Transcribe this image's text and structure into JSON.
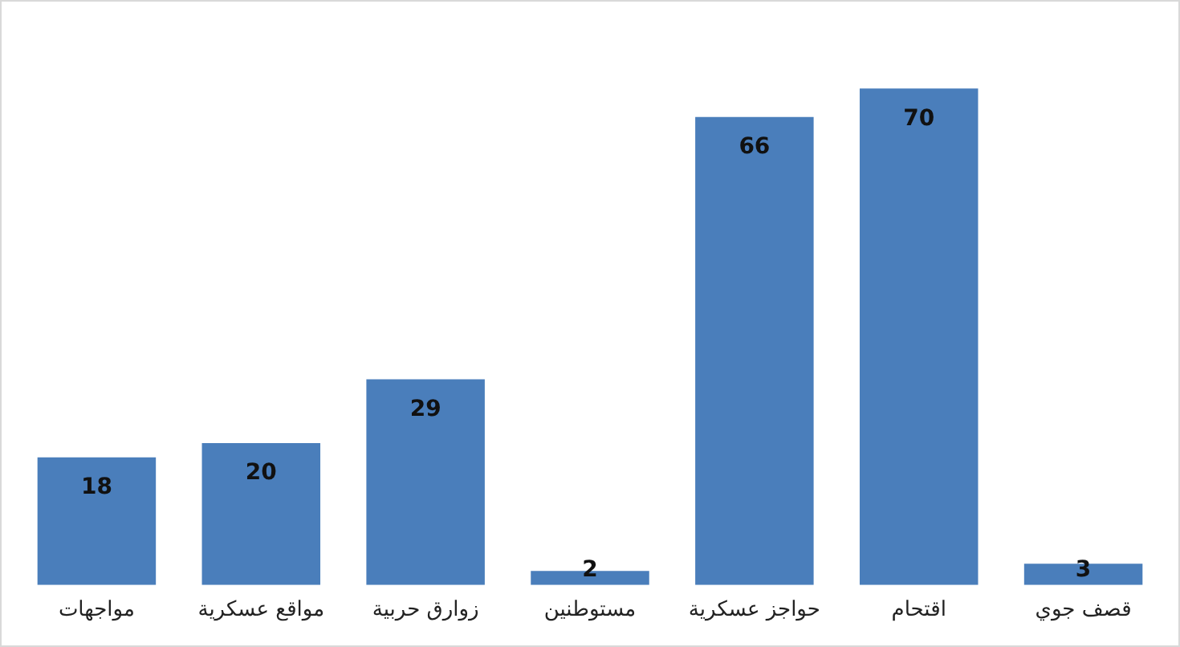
{
  "chart_data": {
    "type": "bar",
    "categories": [
      "مواجهات",
      "مواقع عسكرية",
      "زوارق حربية",
      "مستوطنين",
      "حواجز عسكرية",
      "اقتحام",
      "قصف جوي"
    ],
    "values": [
      18,
      20,
      29,
      2,
      66,
      70,
      3
    ],
    "color": "#4a7ebb",
    "data_labels": true,
    "grid": false,
    "legend": false
  }
}
